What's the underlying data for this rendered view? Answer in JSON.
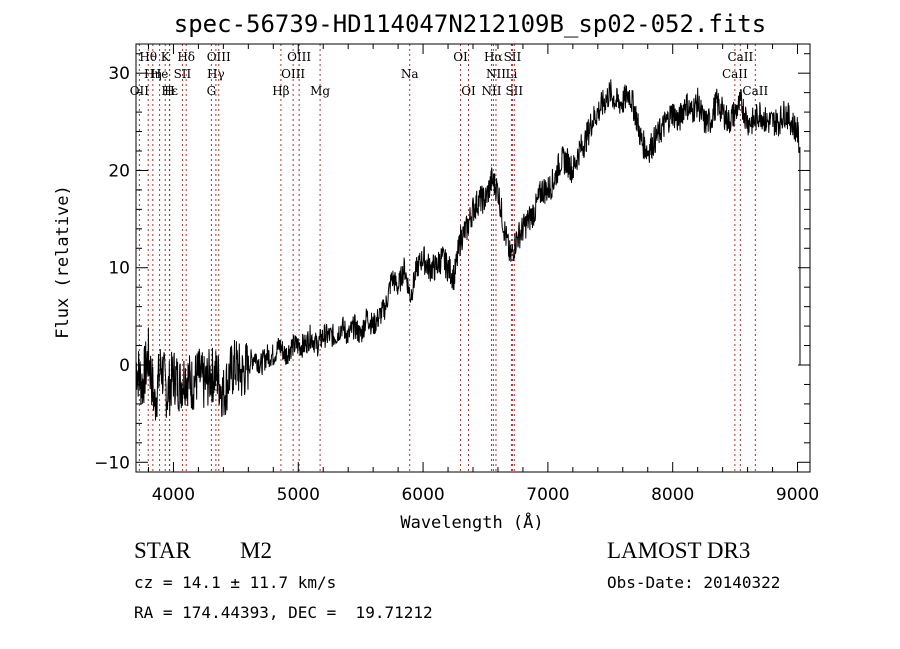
{
  "chart_data": {
    "type": "line",
    "title": "spec-56739-HD114047N212109B_sp02-052.fits",
    "xlabel": "Wavelength (Å)",
    "ylabel": "Flux (relative)",
    "xlim": [
      3700,
      9100
    ],
    "ylim": [
      -11,
      33
    ],
    "xticks": [
      4000,
      5000,
      6000,
      7000,
      8000,
      9000
    ],
    "yticks": [
      -10,
      0,
      10,
      20,
      30
    ],
    "series": [
      {
        "name": "flux",
        "x": [
          3700,
          3750,
          3800,
          3850,
          3900,
          3950,
          4000,
          4050,
          4100,
          4150,
          4200,
          4250,
          4300,
          4350,
          4400,
          4450,
          4500,
          4550,
          4600,
          4650,
          4700,
          4750,
          4800,
          4850,
          4900,
          4950,
          5000,
          5050,
          5100,
          5150,
          5200,
          5250,
          5300,
          5350,
          5400,
          5450,
          5500,
          5550,
          5600,
          5650,
          5700,
          5750,
          5800,
          5850,
          5900,
          5950,
          6000,
          6050,
          6100,
          6150,
          6200,
          6250,
          6300,
          6350,
          6400,
          6450,
          6500,
          6550,
          6600,
          6650,
          6700,
          6750,
          6800,
          6850,
          6900,
          6950,
          7000,
          7050,
          7100,
          7150,
          7200,
          7250,
          7300,
          7350,
          7400,
          7450,
          7500,
          7550,
          7600,
          7650,
          7700,
          7750,
          7800,
          7850,
          7900,
          7950,
          8000,
          8050,
          8100,
          8150,
          8200,
          8250,
          8300,
          8350,
          8400,
          8450,
          8500,
          8550,
          8600,
          8650,
          8700,
          8750,
          8800,
          8850,
          8900,
          8950,
          9000,
          9020
        ],
        "y": [
          0,
          -2,
          1,
          -4,
          0,
          -3,
          -1,
          -2,
          -1,
          -2,
          -1,
          -2,
          -1,
          -1,
          -3,
          -1,
          0,
          -1,
          0,
          1,
          0,
          1,
          1,
          2,
          1,
          2,
          2,
          2,
          3,
          2,
          3,
          3,
          3,
          4,
          3,
          4,
          3,
          5,
          4,
          5,
          6,
          9,
          8,
          10,
          7,
          10,
          11,
          10,
          10,
          11,
          10,
          9,
          13,
          14,
          16,
          17,
          17,
          19,
          18,
          14,
          11,
          13,
          14,
          15,
          16,
          18,
          18,
          19,
          21,
          21,
          20,
          22,
          23,
          25,
          26,
          27,
          28,
          27,
          27,
          28,
          26,
          23,
          22,
          23,
          24,
          25,
          26,
          25,
          27,
          26,
          27,
          25,
          25,
          27,
          26,
          25,
          26,
          27,
          25,
          25,
          26,
          25,
          25,
          25,
          26,
          25,
          24,
          22
        ]
      }
    ],
    "spectral_lines": [
      {
        "label": "Hθ",
        "wl": 3798,
        "row": 0
      },
      {
        "label": "K",
        "wl": 3934,
        "row": 0
      },
      {
        "label": "Hδ",
        "wl": 4102,
        "row": 0
      },
      {
        "label": "OIII",
        "wl": 4363,
        "row": 0
      },
      {
        "label": "OIII",
        "wl": 5007,
        "row": 0
      },
      {
        "label": "OI",
        "wl": 6300,
        "row": 0
      },
      {
        "label": "Hα",
        "wl": 6563,
        "row": 0
      },
      {
        "label": "SII",
        "wl": 6716,
        "row": 0
      },
      {
        "label": "CaII",
        "wl": 8542,
        "row": 0
      },
      {
        "label": "Hη",
        "wl": 3835,
        "row": 1
      },
      {
        "label": "He",
        "wl": 3889,
        "row": 1
      },
      {
        "label": "SII",
        "wl": 4072,
        "row": 1
      },
      {
        "label": "Hγ",
        "wl": 4340,
        "row": 1
      },
      {
        "label": "OIII",
        "wl": 4959,
        "row": 1
      },
      {
        "label": "Na",
        "wl": 5893,
        "row": 1
      },
      {
        "label": "NII",
        "wl": 6584,
        "row": 1
      },
      {
        "label": "Li",
        "wl": 6708,
        "row": 1
      },
      {
        "label": "CaII",
        "wl": 8498,
        "row": 1
      },
      {
        "label": "OII",
        "wl": 3727,
        "row": 2
      },
      {
        "label": "Hε",
        "wl": 3970,
        "row": 2
      },
      {
        "label": "H",
        "wl": 3968,
        "row": 2
      },
      {
        "label": "G",
        "wl": 4304,
        "row": 2
      },
      {
        "label": "Hβ",
        "wl": 4861,
        "row": 2
      },
      {
        "label": "Mg",
        "wl": 5175,
        "row": 2
      },
      {
        "label": "OI",
        "wl": 6364,
        "row": 2
      },
      {
        "label": "NII",
        "wl": 6548,
        "row": 2
      },
      {
        "label": "SII",
        "wl": 6731,
        "row": 2
      },
      {
        "label": "CaII",
        "wl": 8662,
        "row": 2
      }
    ]
  },
  "info": {
    "class": "STAR",
    "subclass": "M2",
    "survey": "LAMOST DR3",
    "cz": "cz = 14.1 ± 11.7 km/s",
    "obs_date": "Obs-Date: 20140322",
    "radec": "RA = 174.44393, DEC =  19.71212"
  },
  "colors": {
    "axis": "#000000",
    "line_marker": "#b03030"
  }
}
